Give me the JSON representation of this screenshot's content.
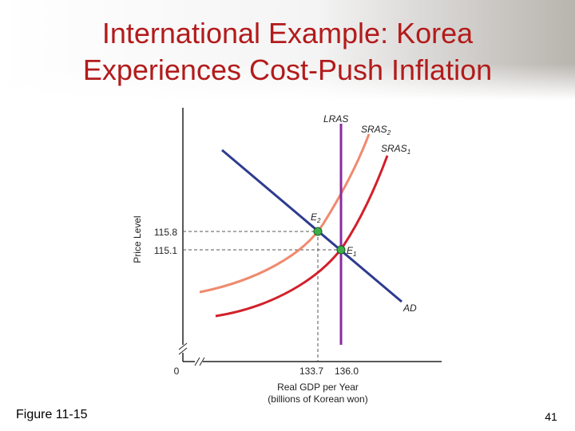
{
  "slide": {
    "title_lines": [
      "International Example:  Korea",
      "Experiences Cost-Push Inflation"
    ],
    "figure": "Figure 11-15",
    "page_number": "41"
  },
  "diagram": {
    "y_axis_label": "Price Level",
    "x_axis_label_lines": [
      "Real GDP per Year",
      "(billions of Korean won)"
    ],
    "origin": "0",
    "y_ticks": [
      "115.8",
      "115.1"
    ],
    "x_ticks": [
      "133.7",
      "136.0"
    ],
    "curves": {
      "lras": "LRAS",
      "sras2": {
        "label": "SRAS",
        "subscript": "2"
      },
      "sras1": {
        "label": "SRAS",
        "subscript": "1"
      },
      "ad": "AD"
    },
    "points": {
      "e2": {
        "label": "E",
        "subscript": "2"
      },
      "e1": {
        "label": "E",
        "subscript": "1"
      }
    }
  }
}
